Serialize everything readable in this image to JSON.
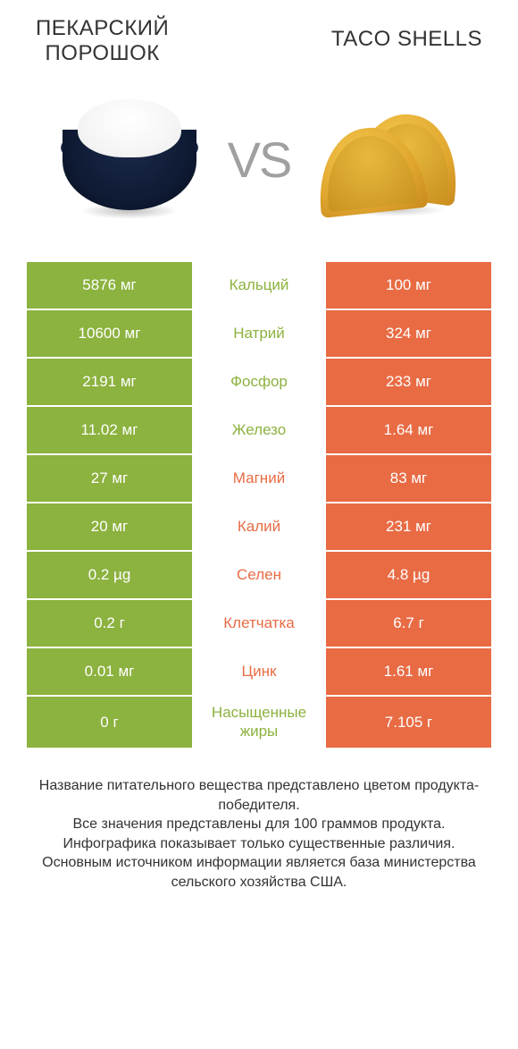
{
  "colors": {
    "green": "#8cb23f",
    "orange": "#e86b44",
    "text": "#333333",
    "white": "#ffffff"
  },
  "product_left": {
    "title_line1": "ПЕКАРСКИЙ",
    "title_line2": "ПОРОШОК"
  },
  "product_right": {
    "title": "TACO SHELLS"
  },
  "vs_label": "VS",
  "rows": [
    {
      "left": "5876 мг",
      "mid": "Кальций",
      "right": "100 мг",
      "winner": "left"
    },
    {
      "left": "10600 мг",
      "mid": "Натрий",
      "right": "324 мг",
      "winner": "left"
    },
    {
      "left": "2191 мг",
      "mid": "Фосфор",
      "right": "233 мг",
      "winner": "left"
    },
    {
      "left": "11.02 мг",
      "mid": "Железо",
      "right": "1.64 мг",
      "winner": "left"
    },
    {
      "left": "27 мг",
      "mid": "Магний",
      "right": "83 мг",
      "winner": "right"
    },
    {
      "left": "20 мг",
      "mid": "Калий",
      "right": "231 мг",
      "winner": "right"
    },
    {
      "left": "0.2 µg",
      "mid": "Селен",
      "right": "4.8 µg",
      "winner": "right"
    },
    {
      "left": "0.2 г",
      "mid": "Клетчатка",
      "right": "6.7 г",
      "winner": "right"
    },
    {
      "left": "0.01 мг",
      "mid": "Цинк",
      "right": "1.61 мг",
      "winner": "right"
    },
    {
      "left": "0 г",
      "mid": "Насыщенные жиры",
      "right": "7.105 г",
      "winner": "left"
    }
  ],
  "footer": {
    "line1": "Название питательного вещества представлено цветом продукта-победителя.",
    "line2": "Все значения представлены для 100 граммов продукта.",
    "line3": "Инфографика показывает только существенные различия.",
    "line4": "Основным источником информации является база министерства сельского хозяйства США."
  }
}
